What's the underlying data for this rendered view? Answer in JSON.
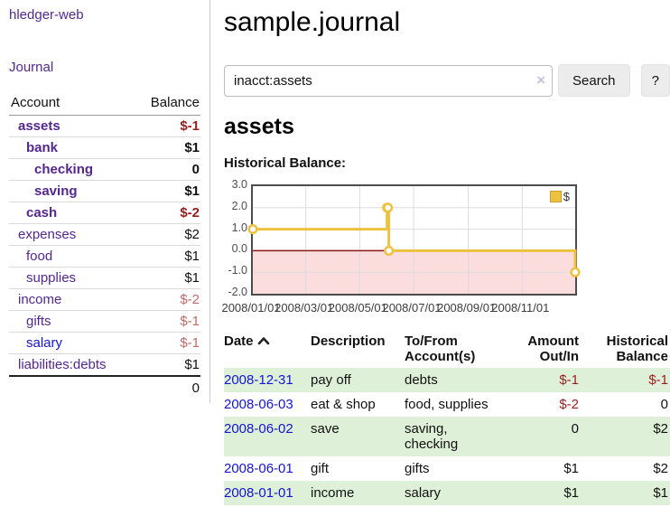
{
  "app": {
    "title": "hledger-web"
  },
  "colors": {
    "link_purple": "#53278e",
    "link_blue": "#1414d2",
    "negative_strong": "#9b1c1c",
    "negative_muted": "#c06a6a",
    "row_green": "#dff0d8",
    "series_gold": "#edc240",
    "zero_line": "#8c1717",
    "negative_region": "#fbdddd",
    "grid": "#dcdcdc",
    "chart_border": "#4c4c4c"
  },
  "sidebar": {
    "journal_label": "Journal",
    "accounts_table": {
      "account_header": "Account",
      "balance_header": "Balance",
      "rows": [
        {
          "account": "assets",
          "balance": "$-1",
          "depth": 0,
          "bold": true,
          "neg": "strong",
          "link": "purple"
        },
        {
          "account": "bank",
          "balance": "$1",
          "depth": 1,
          "bold": true,
          "neg": null,
          "link": "purple"
        },
        {
          "account": "checking",
          "balance": "0",
          "depth": 2,
          "bold": true,
          "neg": null,
          "link": "purple"
        },
        {
          "account": "saving",
          "balance": "$1",
          "depth": 2,
          "bold": true,
          "neg": null,
          "link": "purple"
        },
        {
          "account": "cash",
          "balance": "$-2",
          "depth": 1,
          "bold": true,
          "neg": "strong",
          "link": "purple"
        },
        {
          "account": "expenses",
          "balance": "$2",
          "depth": 0,
          "bold": false,
          "neg": null,
          "link": "purple"
        },
        {
          "account": "food",
          "balance": "$1",
          "depth": 1,
          "bold": false,
          "neg": null,
          "link": "purple"
        },
        {
          "account": "supplies",
          "balance": "$1",
          "depth": 1,
          "bold": false,
          "neg": null,
          "link": "purple"
        },
        {
          "account": "income",
          "balance": "$-2",
          "depth": 0,
          "bold": false,
          "neg": "muted",
          "link": "purple"
        },
        {
          "account": "gifts",
          "balance": "$-1",
          "depth": 1,
          "bold": false,
          "neg": "muted",
          "link": "purple"
        },
        {
          "account": "salary",
          "balance": "$-1",
          "depth": 1,
          "bold": false,
          "neg": "muted",
          "link": "blue"
        },
        {
          "account": "liabilities:debts",
          "balance": "$1",
          "depth": 0,
          "bold": false,
          "neg": null,
          "link": "purple"
        }
      ],
      "total": "0"
    }
  },
  "main": {
    "title": "sample.journal",
    "search": {
      "value": "inacct:assets",
      "clear_icon": "×",
      "button_label": "Search",
      "help_label": "?"
    },
    "account_heading": "assets"
  },
  "chart_data": {
    "type": "line",
    "step": true,
    "title": "Historical Balance:",
    "series": [
      {
        "name": "$",
        "color": "#edc240",
        "points": [
          {
            "x": "2008-01-01",
            "y": 1
          },
          {
            "x": "2008-06-01",
            "y": 2
          },
          {
            "x": "2008-06-02",
            "y": 2
          },
          {
            "x": "2008-06-03",
            "y": 0
          },
          {
            "x": "2008-12-31",
            "y": -1
          }
        ]
      }
    ],
    "xrange": [
      "2008-01-01",
      "2008-12-31"
    ],
    "ylim": [
      -2,
      3
    ],
    "yticks": [
      3.0,
      2.0,
      1.0,
      0.0,
      -1.0,
      -2.0
    ],
    "xticks": [
      "2008/01/01",
      "2008/03/01",
      "2008/05/01",
      "2008/07/01",
      "2008/09/01",
      "2008/11/01"
    ],
    "legend_position": "top-right",
    "grid": true
  },
  "register": {
    "headers": {
      "date": "Date",
      "description": "Description",
      "account_line1": "To/From",
      "account_line2": "Account(s)",
      "amount_line1": "Amount",
      "amount_line2": "Out/In",
      "balance_line1": "Historical",
      "balance_line2": "Balance"
    },
    "rows": [
      {
        "date": "2008-12-31",
        "description": "pay off",
        "accounts": "debts",
        "amount": "$-1",
        "balance": "$-1"
      },
      {
        "date": "2008-06-03",
        "description": "eat & shop",
        "accounts": "food, supplies",
        "amount": "$-2",
        "balance": "0"
      },
      {
        "date": "2008-06-02",
        "description": "save",
        "accounts": "saving, checking",
        "amount": "0",
        "balance": "$2"
      },
      {
        "date": "2008-06-01",
        "description": "gift",
        "accounts": "gifts",
        "amount": "$1",
        "balance": "$2"
      },
      {
        "date": "2008-01-01",
        "description": "income",
        "accounts": "salary",
        "amount": "$1",
        "balance": "$1"
      }
    ]
  }
}
